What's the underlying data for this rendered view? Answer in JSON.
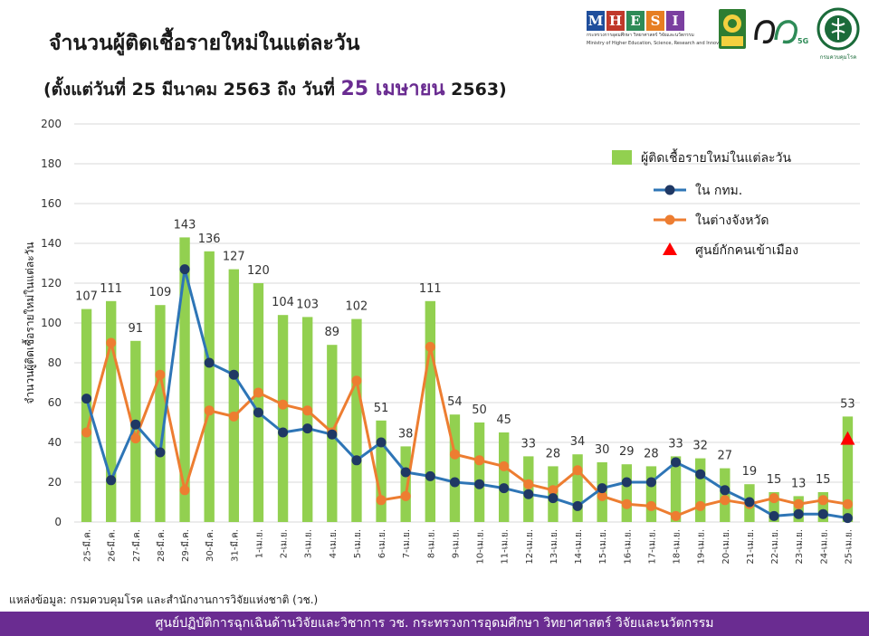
{
  "header": {
    "title": "จำนวนผู้ติดเชื้อรายใหม่ในแต่ละวัน",
    "subtitle_pre": "(ตั้งแต่วันที่ 25 มีนาคม 2563 ถึง วันที่ ",
    "subtitle_highlight": "25 เมษายน",
    "subtitle_post": " 2563)"
  },
  "logos": {
    "mhesi_letters": [
      "M",
      "H",
      "E",
      "S",
      "I"
    ],
    "mhesi_colors": [
      "#1f4e9c",
      "#c0392b",
      "#2e8b57",
      "#e67e22",
      "#7b3fa0"
    ],
    "mhesi_line1": "กระทรวงการอุดมศึกษา วิทยาศาสตร์ วิจัยและนวัตกรรม",
    "mhesi_line2": "Ministry of Higher Education, Science, Research and Innovation",
    "nrct_text": "วช. NRCT",
    "seventy_text": "๗๐",
    "seventy_badge": "5G",
    "ddc_text": "กรมควบคุมโรค"
  },
  "source": "แหล่งข้อมูล: กรมควบคุมโรค และสำนักงานการวิจัยแห่งชาติ (วช.)",
  "footer": "ศูนย์ปฏิบัติการฉุกเฉินด้านวิจัยและวิชาการ   วช.   กระทรวงการอุดมศึกษา วิทยาศาสตร์ วิจัยและนวัตกรรม",
  "colors": {
    "bar": "#92d050",
    "bkk": "#2e75b6",
    "bkk_marker": "#1f3864",
    "province": "#ed7d31",
    "quarantine": "#ff0000",
    "grid": "#d9d9d9",
    "accent": "#6a2c91"
  },
  "chart_data": {
    "type": "bar",
    "title": "จำนวนผู้ติดเชื้อรายใหม่ในแต่ละวัน",
    "ylabel": "จำนวนผู้ติดเชื้อรายใหม่ในแต่ละวัน",
    "xlabel": "",
    "ylim": [
      0,
      200
    ],
    "yticks": [
      0,
      20,
      40,
      60,
      80,
      100,
      120,
      140,
      160,
      180,
      200
    ],
    "grid": true,
    "legend_position": "top-right",
    "categories": [
      "25-มี.ค.",
      "26-มี.ค.",
      "27-มี.ค.",
      "28-มี.ค.",
      "29-มี.ค.",
      "30-มี.ค.",
      "31-มี.ค.",
      "1-เม.ย.",
      "2-เม.ย.",
      "3-เม.ย.",
      "4-เม.ย.",
      "5-เม.ย.",
      "6-เม.ย.",
      "7-เม.ย.",
      "8-เม.ย.",
      "9-เม.ย.",
      "10-เม.ย.",
      "11-เม.ย.",
      "12-เม.ย.",
      "13-เม.ย.",
      "14-เม.ย.",
      "15-เม.ย.",
      "16-เม.ย.",
      "17-เม.ย.",
      "18-เม.ย.",
      "19-เม.ย.",
      "20-เม.ย.",
      "21-เม.ย.",
      "22-เม.ย.",
      "23-เม.ย.",
      "24-เม.ย.",
      "25-เม.ย."
    ],
    "series": [
      {
        "name": "ผู้ติดเชื้อรายใหม่ในแต่ละวัน",
        "type": "bar",
        "values": [
          107,
          111,
          91,
          109,
          143,
          136,
          127,
          120,
          104,
          103,
          89,
          102,
          51,
          38,
          111,
          54,
          50,
          45,
          33,
          28,
          34,
          30,
          29,
          28,
          33,
          32,
          27,
          19,
          15,
          13,
          15,
          53
        ]
      },
      {
        "name": "ใน กทม.",
        "type": "line",
        "values": [
          62,
          21,
          49,
          35,
          127,
          80,
          74,
          55,
          45,
          47,
          44,
          31,
          40,
          25,
          23,
          20,
          19,
          17,
          14,
          12,
          8,
          17,
          20,
          20,
          30,
          24,
          16,
          10,
          3,
          4,
          4,
          2
        ]
      },
      {
        "name": "ในต่างจังหวัด",
        "type": "line",
        "values": [
          45,
          90,
          42,
          74,
          16,
          56,
          53,
          65,
          59,
          56,
          45,
          71,
          11,
          13,
          88,
          34,
          31,
          28,
          19,
          16,
          26,
          13,
          9,
          8,
          3,
          8,
          11,
          9,
          12,
          9,
          11,
          9
        ]
      },
      {
        "name": "ศูนย์กักคนเข้าเมือง",
        "type": "marker",
        "points": [
          {
            "category": "25-เม.ย.",
            "value": 42
          }
        ]
      }
    ]
  }
}
